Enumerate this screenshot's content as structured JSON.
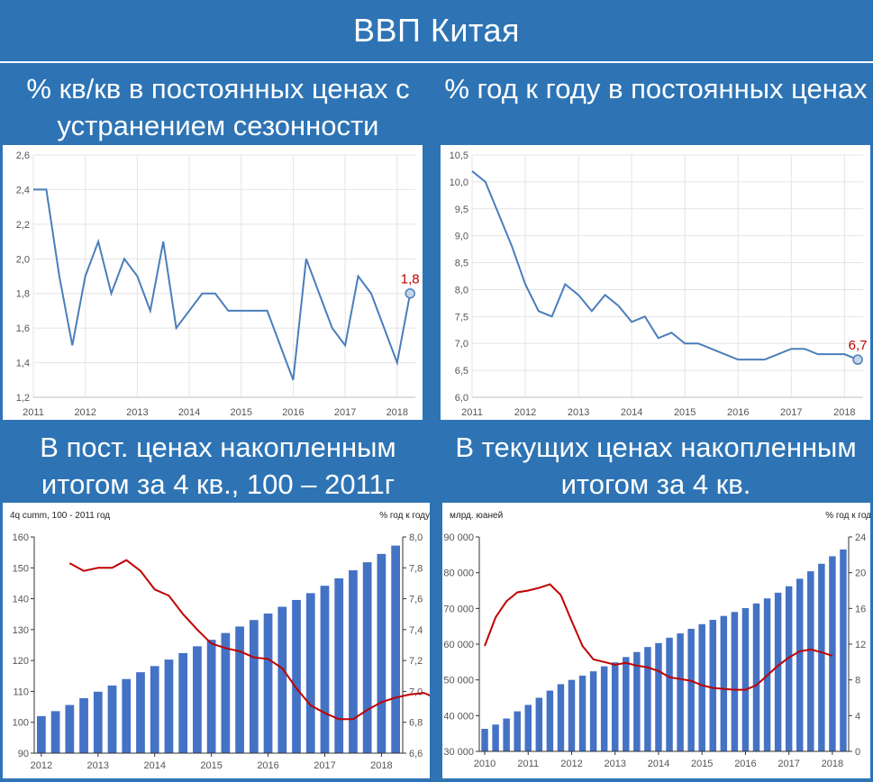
{
  "header": {
    "title": "ВВП Китая"
  },
  "panels": {
    "tl": {
      "title": "% кв/кв в постоянных ценах с устранением сезонности"
    },
    "tr": {
      "title": "% год к году в постоянных ценах"
    },
    "bl": {
      "title": "В пост. ценах накопленным итогом за 4 кв., 100 – 2011г"
    },
    "br": {
      "title": "В текущих ценах накопленным итогом за 4 кв."
    }
  },
  "colors": {
    "background": "#2E74B5",
    "line_blue": "#4A7EBB",
    "bar_blue": "#4472C4",
    "line_red": "#C00000"
  },
  "chart_data": [
    {
      "type": "line",
      "x_start": 2011.0,
      "x_step": 0.25,
      "values": [
        2.4,
        2.4,
        1.9,
        1.5,
        1.9,
        2.1,
        1.8,
        2.0,
        1.9,
        1.7,
        2.1,
        1.6,
        1.7,
        1.8,
        1.8,
        1.7,
        1.7,
        1.7,
        1.7,
        1.5,
        1.3,
        2.0,
        1.8,
        1.6,
        1.5,
        1.9,
        1.8,
        1.6,
        1.4,
        1.8
      ],
      "ylim": [
        1.2,
        2.6
      ],
      "y_ticks": [
        1.2,
        1.4,
        1.6,
        1.8,
        2.0,
        2.2,
        2.4,
        2.6
      ],
      "x_ticks": [
        2011,
        2012,
        2013,
        2014,
        2015,
        2016,
        2017,
        2018
      ],
      "last_label": "1,8",
      "grid": true
    },
    {
      "type": "line",
      "x_start": 2011.0,
      "x_step": 0.25,
      "values": [
        10.2,
        10.0,
        9.4,
        8.8,
        8.1,
        7.6,
        7.5,
        8.1,
        7.9,
        7.6,
        7.9,
        7.7,
        7.4,
        7.5,
        7.1,
        7.2,
        7.0,
        7.0,
        6.9,
        6.8,
        6.7,
        6.7,
        6.7,
        6.8,
        6.9,
        6.9,
        6.8,
        6.8,
        6.8,
        6.7
      ],
      "ylim": [
        6.0,
        10.5
      ],
      "y_ticks": [
        6.0,
        6.5,
        7.0,
        7.5,
        8.0,
        8.5,
        9.0,
        9.5,
        10.0,
        10.5
      ],
      "x_ticks": [
        2011,
        2012,
        2013,
        2014,
        2015,
        2016,
        2017,
        2018
      ],
      "last_label": "6,7",
      "grid": true
    },
    {
      "type": "bar",
      "ylabel": "4q cumm, 100 - 2011 год",
      "y2label": "% год к году",
      "bar_x_start": 2012.0,
      "x_step": 0.25,
      "bars": [
        102.0,
        103.6,
        105.6,
        107.8,
        109.9,
        111.9,
        114.0,
        116.2,
        118.2,
        120.3,
        122.4,
        124.6,
        126.7,
        128.9,
        131.0,
        133.1,
        135.2,
        137.4,
        139.6,
        141.8,
        144.2,
        146.6,
        149.2,
        151.8,
        154.5,
        157.2
      ],
      "ylim": [
        90,
        160
      ],
      "y_ticks": [
        90,
        100,
        110,
        120,
        130,
        140,
        150,
        160
      ],
      "line_x_start": 2012.5,
      "line": [
        7.83,
        7.78,
        7.8,
        7.8,
        7.85,
        7.78,
        7.66,
        7.62,
        7.5,
        7.4,
        7.31,
        7.28,
        7.26,
        7.22,
        7.21,
        7.15,
        7.02,
        6.91,
        6.86,
        6.82,
        6.82,
        6.88,
        6.93,
        6.96,
        6.98,
        6.99,
        6.95,
        6.91
      ],
      "y2lim": [
        6.6,
        8.0
      ],
      "y2_ticks": [
        6.6,
        6.8,
        7.0,
        7.2,
        7.4,
        7.6,
        7.8,
        8.0
      ],
      "x_ticks": [
        2012,
        2013,
        2014,
        2015,
        2016,
        2017,
        2018
      ]
    },
    {
      "type": "bar",
      "ylabel": "млрд. юаней",
      "y2label": "% год к году",
      "bar_x_start": 2010.0,
      "x_step": 0.25,
      "bars": [
        36300,
        37500,
        39200,
        41200,
        43000,
        45000,
        47000,
        48800,
        50000,
        51200,
        52400,
        53800,
        54900,
        56400,
        57800,
        59200,
        60300,
        61800,
        63000,
        64300,
        65600,
        66800,
        67900,
        69000,
        70100,
        71400,
        72800,
        74400,
        76200,
        78300,
        80400,
        82500,
        84600,
        86500
      ],
      "ylim": [
        30000,
        90000
      ],
      "y_ticks": [
        30000,
        40000,
        50000,
        60000,
        70000,
        80000,
        90000
      ],
      "y_tick_labels": [
        "30 000",
        "40 000",
        "50 000",
        "60 000",
        "70 000",
        "80 000",
        "90 000"
      ],
      "line_x_start": 2010.0,
      "line": [
        11.8,
        15.0,
        16.8,
        17.8,
        18.0,
        18.3,
        18.7,
        17.5,
        14.6,
        11.8,
        10.3,
        10.0,
        9.7,
        9.9,
        9.6,
        9.4,
        9.0,
        8.3,
        8.1,
        7.9,
        7.4,
        7.1,
        7.0,
        6.9,
        6.9,
        7.4,
        8.5,
        9.6,
        10.5,
        11.2,
        11.4,
        11.1,
        10.7
      ],
      "y2lim": [
        0,
        24
      ],
      "y2_ticks": [
        0,
        4,
        8,
        12,
        16,
        20,
        24
      ],
      "x_ticks": [
        2010,
        2011,
        2012,
        2013,
        2014,
        2015,
        2016,
        2017,
        2018
      ]
    }
  ]
}
